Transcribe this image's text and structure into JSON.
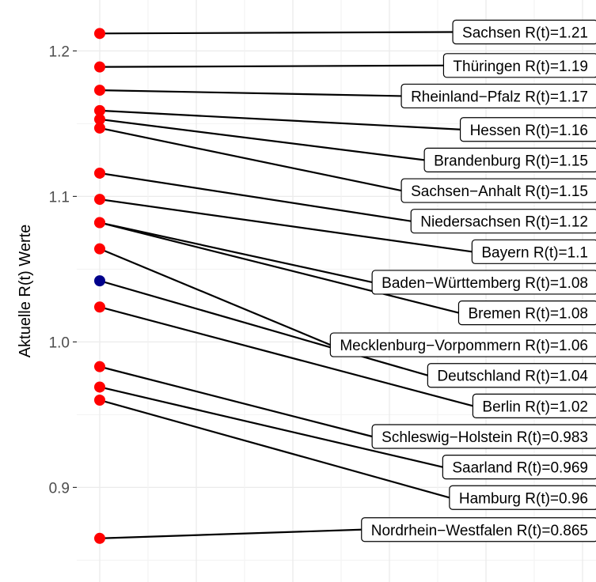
{
  "chart_data": {
    "type": "scatter",
    "title": "",
    "xlabel": "",
    "ylabel": "Aktuelle R(t) Werte",
    "ylim": [
      0.835,
      1.235
    ],
    "yticks": [
      {
        "value": 0.9,
        "label": "0.9"
      },
      {
        "value": 1.0,
        "label": "1.0"
      },
      {
        "value": 1.1,
        "label": "1.1"
      },
      {
        "value": 1.2,
        "label": "1.2"
      }
    ],
    "grid": true,
    "legend": "none",
    "colors": {
      "states": "#ff0000",
      "germany": "#00008b",
      "background": "#ffffff",
      "grid": "#ebebeb"
    },
    "points": [
      {
        "name": "Sachsen",
        "r": 1.212,
        "label": "Sachsen R(t)=1.21",
        "label_value": 1.213,
        "highlight": false
      },
      {
        "name": "Thüringen",
        "r": 1.189,
        "label": "Thüringen R(t)=1.19",
        "label_value": 1.19,
        "highlight": false
      },
      {
        "name": "Rheinland-Pfalz",
        "r": 1.173,
        "label": "Rheinland−Pfalz R(t)=1.17",
        "label_value": 1.169,
        "highlight": false
      },
      {
        "name": "Hessen",
        "r": 1.159,
        "label": "Hessen R(t)=1.16",
        "label_value": 1.146,
        "highlight": false
      },
      {
        "name": "Brandenburg",
        "r": 1.153,
        "label": "Brandenburg R(t)=1.15",
        "label_value": 1.125,
        "highlight": false
      },
      {
        "name": "Sachsen-Anhalt",
        "r": 1.147,
        "label": "Sachsen−Anhalt R(t)=1.15",
        "label_value": 1.104,
        "highlight": false
      },
      {
        "name": "Niedersachsen",
        "r": 1.116,
        "label": "Niedersachsen R(t)=1.12",
        "label_value": 1.083,
        "highlight": false
      },
      {
        "name": "Bayern",
        "r": 1.098,
        "label": "Bayern R(t)=1.1",
        "label_value": 1.062,
        "highlight": false
      },
      {
        "name": "Baden-Württemberg",
        "r": 1.082,
        "label": "Baden−Württemberg R(t)=1.08",
        "label_value": 1.041,
        "highlight": false
      },
      {
        "name": "Bremen",
        "r": 1.082,
        "label": "Bremen R(t)=1.08",
        "label_value": 1.02,
        "highlight": false
      },
      {
        "name": "Mecklenburg-Vorpommern",
        "r": 1.064,
        "label": "Mecklenburg−Vorpommern R(t)=1.06",
        "label_value": 0.998,
        "highlight": false
      },
      {
        "name": "Deutschland",
        "r": 1.042,
        "label": "Deutschland R(t)=1.04",
        "label_value": 0.977,
        "highlight": true
      },
      {
        "name": "Berlin",
        "r": 1.024,
        "label": "Berlin R(t)=1.02",
        "label_value": 0.956,
        "highlight": false
      },
      {
        "name": "Schleswig-Holstein",
        "r": 0.983,
        "label": "Schleswig−Holstein R(t)=0.983",
        "label_value": 0.935,
        "highlight": false
      },
      {
        "name": "Saarland",
        "r": 0.969,
        "label": "Saarland R(t)=0.969",
        "label_value": 0.914,
        "highlight": false
      },
      {
        "name": "Hamburg",
        "r": 0.96,
        "label": "Hamburg R(t)=0.96",
        "label_value": 0.893,
        "highlight": false
      },
      {
        "name": "Nordrhein-Westfalen",
        "r": 0.865,
        "label": "Nordrhein−Westfalen R(t)=0.865",
        "label_value": 0.871,
        "highlight": false
      }
    ]
  }
}
